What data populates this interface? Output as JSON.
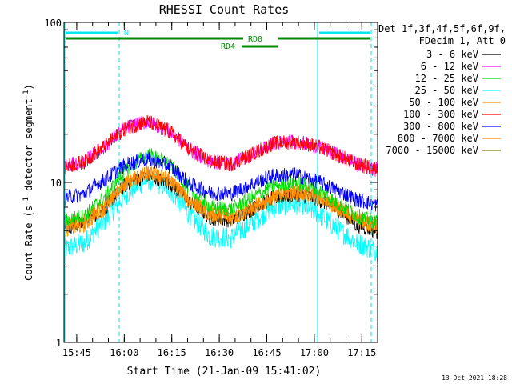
{
  "chart_data": {
    "type": "line",
    "title": "RHESSI Count Rates",
    "xlabel": "Start Time (21-Jan-09 15:41:02)",
    "ylabel": "Count Rate (s",
    "ylabel_sup": "-1",
    "ylabel_mid": " detector segment",
    "ylabel_sup2": "-1",
    "ylabel_end": ")",
    "y_scale": "log",
    "ylim": [
      1,
      100
    ],
    "y_ticks": [
      "1",
      "10",
      "100"
    ],
    "x_range_minutes": [
      15.683,
      17.333
    ],
    "x_ticks": [
      "15:45",
      "16:00",
      "16:15",
      "16:30",
      "16:45",
      "17:00",
      "17:15"
    ],
    "legend_header": [
      "Det 1f,3f,4f,5f,6f,9f,",
      "FDecim 1, Att 0"
    ],
    "legend_position": "right",
    "footer": "13-Oct-2021 18:28",
    "series": [
      {
        "name": "3 - 6 keV",
        "color": "#000000",
        "values": [
          5.2,
          5.6,
          7.0,
          9.8,
          11.0,
          10.0,
          7.5,
          6.0,
          5.8,
          6.8,
          8.0,
          8.4,
          8.0,
          6.8,
          5.4,
          4.9
        ]
      },
      {
        "name": "6 - 12 keV",
        "color": "#ff00ff",
        "values": [
          12.5,
          13.5,
          17.0,
          22.0,
          24.0,
          21.0,
          16.0,
          13.5,
          13.0,
          15.0,
          17.5,
          18.0,
          17.0,
          15.0,
          13.0,
          12.0
        ]
      },
      {
        "name": "12 - 25 keV",
        "color": "#00dd00",
        "values": [
          5.8,
          6.2,
          8.2,
          12.0,
          15.0,
          13.0,
          9.0,
          7.0,
          6.8,
          8.0,
          9.5,
          10.0,
          9.2,
          7.5,
          6.2,
          5.6
        ]
      },
      {
        "name": "25 - 50 keV",
        "color": "#00ffff",
        "values": [
          3.8,
          4.2,
          5.8,
          8.5,
          10.5,
          9.2,
          6.2,
          4.6,
          4.5,
          5.6,
          7.0,
          7.4,
          6.6,
          5.2,
          4.2,
          3.7
        ]
      },
      {
        "name": "50 - 100 keV",
        "color": "#ff9900",
        "values": [
          5.0,
          5.4,
          7.0,
          10.0,
          11.5,
          10.5,
          7.6,
          6.2,
          5.9,
          6.8,
          8.0,
          8.6,
          8.2,
          7.0,
          5.8,
          5.2
        ]
      },
      {
        "name": "100 - 300 keV",
        "color": "#ff0000",
        "values": [
          12.5,
          13.5,
          17.0,
          22.0,
          24.0,
          21.0,
          16.0,
          13.5,
          13.0,
          15.0,
          17.5,
          18.0,
          17.0,
          15.0,
          13.0,
          12.0
        ]
      },
      {
        "name": "300 - 800 keV",
        "color": "#0000ff",
        "values": [
          8.0,
          8.5,
          10.5,
          13.0,
          14.0,
          12.8,
          9.8,
          8.6,
          8.5,
          9.8,
          11.0,
          11.2,
          10.3,
          9.0,
          7.8,
          7.2
        ]
      },
      {
        "name": "800 - 7000 keV",
        "color": "#ff8800",
        "values": [
          5.4,
          5.8,
          7.2,
          10.0,
          11.5,
          10.5,
          7.8,
          6.5,
          6.2,
          7.0,
          8.2,
          8.8,
          8.4,
          7.2,
          6.0,
          5.4
        ]
      },
      {
        "name": "7000 - 15000 keV",
        "color": "#808000",
        "values": [
          0,
          0,
          0,
          0,
          0,
          0,
          0,
          0,
          0,
          0,
          0,
          0,
          0,
          0,
          0,
          0
        ]
      }
    ],
    "annotations": {
      "flag_N": "N",
      "flag_RD0": "RD0",
      "flag_RD4": "RD4",
      "flag_N_color": "#00e5ee",
      "flag_RD_color": "#008800",
      "boundary_color": "#00e5ee"
    }
  }
}
